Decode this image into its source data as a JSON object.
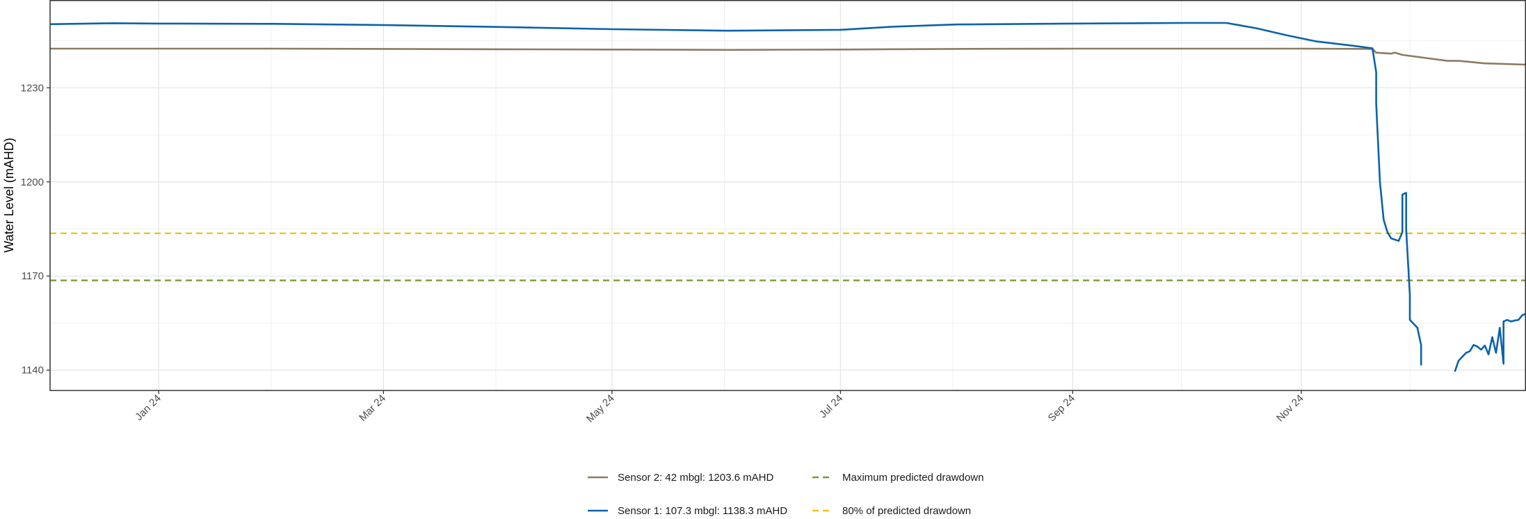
{
  "chart_data": {
    "type": "line",
    "title": "",
    "xlabel": "",
    "ylabel": "Water Level (mAHD)",
    "x_tick_labels": [
      "Jan 24",
      "Mar 24",
      "May 24",
      "Jul 24",
      "Sep 24",
      "Nov 24"
    ],
    "x_tick_dates": [
      "2024-01-01",
      "2024-03-01",
      "2024-05-01",
      "2024-07-01",
      "2024-09-01",
      "2024-11-01"
    ],
    "x_minor_dates": [
      "2024-01-31",
      "2024-03-31",
      "2024-05-31",
      "2024-07-31",
      "2024-09-30",
      "2024-11-30"
    ],
    "xlim": [
      "2023-12-03",
      "2024-12-31"
    ],
    "y_ticks": [
      1140,
      1170,
      1200,
      1230
    ],
    "ylim": [
      1133.5,
      1258
    ],
    "grid": true,
    "legend_position": "bottom",
    "series": [
      {
        "name": "Sensor 2: 42 mbgl:  1203.6 mAHD",
        "color": "#8c7b63",
        "style": "solid",
        "points": [
          [
            "2023-12-03",
            1242.5
          ],
          [
            "2024-01-01",
            1242.5
          ],
          [
            "2024-02-01",
            1242.5
          ],
          [
            "2024-03-01",
            1242.4
          ],
          [
            "2024-04-01",
            1242.3
          ],
          [
            "2024-05-01",
            1242.2
          ],
          [
            "2024-06-01",
            1242.1
          ],
          [
            "2024-07-01",
            1242.2
          ],
          [
            "2024-08-01",
            1242.4
          ],
          [
            "2024-09-01",
            1242.5
          ],
          [
            "2024-10-01",
            1242.5
          ],
          [
            "2024-11-01",
            1242.5
          ],
          [
            "2024-11-20",
            1242.4
          ],
          [
            "2024-11-21",
            1241.2
          ],
          [
            "2024-11-25",
            1240.9
          ],
          [
            "2024-11-26",
            1241.2
          ],
          [
            "2024-11-28",
            1240.5
          ],
          [
            "2024-12-05",
            1239.4
          ],
          [
            "2024-12-10",
            1238.6
          ],
          [
            "2024-12-13",
            1238.6
          ],
          [
            "2024-12-20",
            1237.8
          ],
          [
            "2024-12-31",
            1237.4
          ]
        ]
      },
      {
        "name": "Sensor 1: 107.3 mbgl:  1138.3 mAHD",
        "color": "#0a62ac",
        "style": "solid",
        "segments": [
          [
            [
              "2023-12-03",
              1250.3
            ],
            [
              "2023-12-20",
              1250.6
            ],
            [
              "2024-01-01",
              1250.5
            ],
            [
              "2024-02-01",
              1250.4
            ],
            [
              "2024-03-01",
              1250.0
            ],
            [
              "2024-04-01",
              1249.4
            ],
            [
              "2024-05-01",
              1248.7
            ],
            [
              "2024-06-01",
              1248.2
            ],
            [
              "2024-07-01",
              1248.5
            ],
            [
              "2024-07-15",
              1249.5
            ],
            [
              "2024-08-01",
              1250.2
            ],
            [
              "2024-09-01",
              1250.5
            ],
            [
              "2024-10-01",
              1250.7
            ],
            [
              "2024-10-12",
              1250.7
            ],
            [
              "2024-10-20",
              1249.0
            ],
            [
              "2024-10-28",
              1246.8
            ],
            [
              "2024-11-05",
              1244.8
            ],
            [
              "2024-11-15",
              1243.4
            ],
            [
              "2024-11-20",
              1242.6
            ],
            [
              "2024-11-21",
              1235.0
            ],
            [
              "2024-11-21",
              1225.0
            ],
            [
              "2024-11-22",
              1200.0
            ],
            [
              "2024-11-23",
              1188.0
            ],
            [
              "2024-11-24",
              1184.0
            ],
            [
              "2024-11-25",
              1182.0
            ],
            [
              "2024-11-27",
              1181.2
            ],
            [
              "2024-11-28",
              1184.0
            ],
            [
              "2024-11-28",
              1196.0
            ],
            [
              "2024-11-29",
              1196.5
            ],
            [
              "2024-11-29",
              1185.0
            ],
            [
              "2024-11-30",
              1164.0
            ],
            [
              "2024-11-30",
              1156.0
            ],
            [
              "2024-12-02",
              1153.5
            ],
            [
              "2024-12-03",
              1148.0
            ],
            [
              "2024-12-03",
              1141.5
            ]
          ],
          [
            [
              "2024-12-12",
              1139.5
            ],
            [
              "2024-12-13",
              1143.0
            ],
            [
              "2024-12-15",
              1145.5
            ],
            [
              "2024-12-16",
              1146.0
            ],
            [
              "2024-12-17",
              1148.0
            ],
            [
              "2024-12-18",
              1147.5
            ],
            [
              "2024-12-19",
              1146.5
            ],
            [
              "2024-12-20",
              1147.8
            ],
            [
              "2024-12-21",
              1145.0
            ],
            [
              "2024-12-22",
              1150.5
            ],
            [
              "2024-12-23",
              1145.5
            ],
            [
              "2024-12-24",
              1153.5
            ],
            [
              "2024-12-25",
              1142.0
            ],
            [
              "2024-12-25",
              1155.5
            ],
            [
              "2024-12-26",
              1156.0
            ],
            [
              "2024-12-27",
              1155.5
            ],
            [
              "2024-12-28",
              1155.8
            ],
            [
              "2024-12-29",
              1156.0
            ],
            [
              "2024-12-30",
              1157.5
            ],
            [
              "2024-12-31",
              1158.0
            ]
          ]
        ]
      },
      {
        "name": "Maximum predicted drawdown",
        "color": "#7a9a2e",
        "style": "dashed",
        "value": 1168.6
      },
      {
        "name": "80% of predicted drawdown",
        "color": "#f2c318",
        "style": "dashed",
        "value": 1183.6
      }
    ],
    "legend_rows": [
      [
        0,
        2
      ],
      [
        1,
        3
      ]
    ]
  }
}
